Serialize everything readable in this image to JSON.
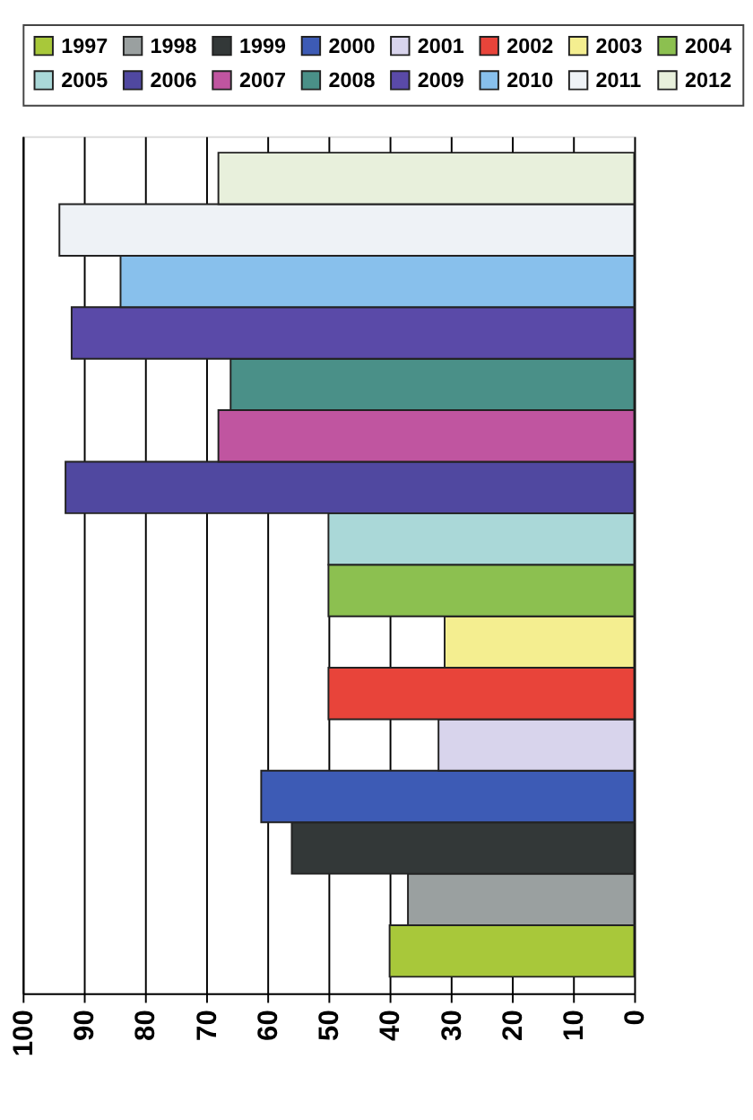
{
  "chart_data": {
    "type": "bar",
    "orientation": "horizontal",
    "categories": [
      null
    ],
    "series": [
      {
        "name": "1997",
        "color": "#a8c83a",
        "values": [
          40
        ]
      },
      {
        "name": "1998",
        "color": "#9aa0a0",
        "values": [
          37
        ]
      },
      {
        "name": "1999",
        "color": "#333838",
        "values": [
          56
        ]
      },
      {
        "name": "2000",
        "color": "#3d5bb5",
        "values": [
          61
        ]
      },
      {
        "name": "2001",
        "color": "#d8d4ec",
        "values": [
          32
        ]
      },
      {
        "name": "2002",
        "color": "#e8443a",
        "values": [
          50
        ]
      },
      {
        "name": "2003",
        "color": "#f4ee90",
        "values": [
          31
        ]
      },
      {
        "name": "2004",
        "color": "#8cc050",
        "values": [
          50
        ]
      },
      {
        "name": "2005",
        "color": "#aad8d8",
        "values": [
          50
        ]
      },
      {
        "name": "2006",
        "color": "#5048a0",
        "values": [
          93
        ]
      },
      {
        "name": "2007",
        "color": "#c055a0",
        "values": [
          68
        ]
      },
      {
        "name": "2008",
        "color": "#4a9088",
        "values": [
          66
        ]
      },
      {
        "name": "2009",
        "color": "#5a4aa8",
        "values": [
          92
        ]
      },
      {
        "name": "2010",
        "color": "#88c0ec",
        "values": [
          84
        ]
      },
      {
        "name": "2011",
        "color": "#eef2f6",
        "values": [
          94
        ]
      },
      {
        "name": "2012",
        "color": "#e8f0dc",
        "values": [
          68
        ]
      }
    ],
    "xlim": [
      100,
      0
    ],
    "xticks": [
      0,
      10,
      20,
      30,
      40,
      50,
      60,
      70,
      80,
      90,
      100
    ],
    "grid": "x",
    "legend": "top",
    "tick_labels": "x"
  }
}
